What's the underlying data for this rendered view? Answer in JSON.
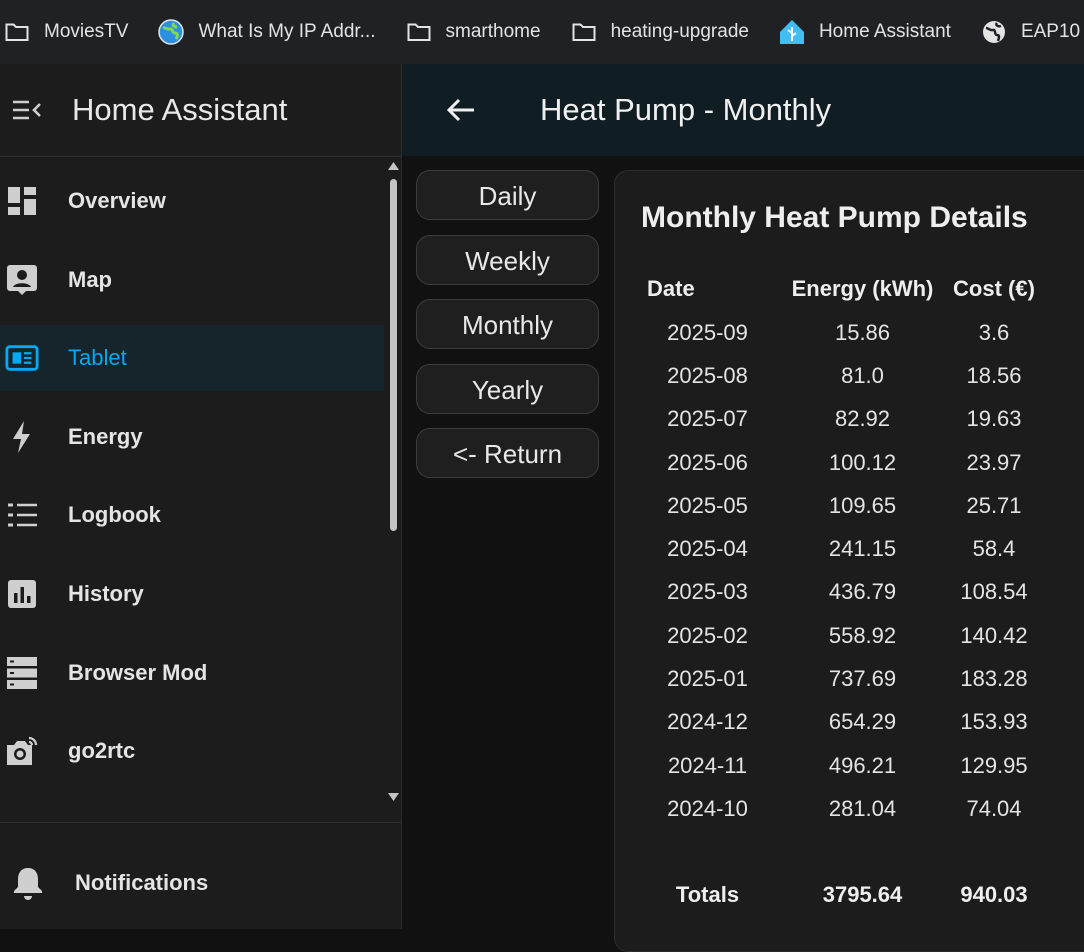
{
  "bookmarks": [
    {
      "label": "MoviesTV",
      "icon": "folder-icon"
    },
    {
      "label": "What Is My IP Addr...",
      "icon": "globe-colored-icon"
    },
    {
      "label": "smarthome",
      "icon": "folder-icon"
    },
    {
      "label": "heating-upgrade",
      "icon": "folder-icon"
    },
    {
      "label": "Home Assistant",
      "icon": "home-assistant-icon"
    },
    {
      "label": "EAP10",
      "icon": "globe-icon"
    }
  ],
  "sidebar": {
    "title": "Home Assistant",
    "items": [
      {
        "label": "Overview",
        "icon": "dashboard-icon"
      },
      {
        "label": "Map",
        "icon": "map-account-icon"
      },
      {
        "label": "Tablet",
        "icon": "tablet-dashboard-icon",
        "active": true
      },
      {
        "label": "Energy",
        "icon": "lightning-bolt-icon"
      },
      {
        "label": "Logbook",
        "icon": "list-icon"
      },
      {
        "label": "History",
        "icon": "chart-box-icon"
      },
      {
        "label": "Browser Mod",
        "icon": "server-icon"
      },
      {
        "label": "go2rtc",
        "icon": "camera-icon"
      }
    ],
    "notifications_label": "Notifications"
  },
  "header": {
    "title": "Heat Pump - Monthly"
  },
  "period_buttons": [
    "Daily",
    "Weekly",
    "Monthly",
    "Yearly",
    "<- Return"
  ],
  "card": {
    "title": "Monthly Heat Pump Details",
    "columns": [
      "Date",
      "Energy (kWh)",
      "Cost (€)"
    ],
    "rows": [
      [
        "2025-09",
        "15.86",
        "3.6"
      ],
      [
        "2025-08",
        "81.0",
        "18.56"
      ],
      [
        "2025-07",
        "82.92",
        "19.63"
      ],
      [
        "2025-06",
        "100.12",
        "23.97"
      ],
      [
        "2025-05",
        "109.65",
        "25.71"
      ],
      [
        "2025-04",
        "241.15",
        "58.4"
      ],
      [
        "2025-03",
        "436.79",
        "108.54"
      ],
      [
        "2025-02",
        "558.92",
        "140.42"
      ],
      [
        "2025-01",
        "737.69",
        "183.28"
      ],
      [
        "2024-12",
        "654.29",
        "153.93"
      ],
      [
        "2024-11",
        "496.21",
        "129.95"
      ],
      [
        "2024-10",
        "281.04",
        "74.04"
      ]
    ],
    "totals": [
      "Totals",
      "3795.64",
      "940.03"
    ]
  },
  "colors": {
    "accent": "#03a9f4",
    "topbar": "#101e24",
    "sidebar": "#1c1c1c",
    "background": "#111111"
  }
}
